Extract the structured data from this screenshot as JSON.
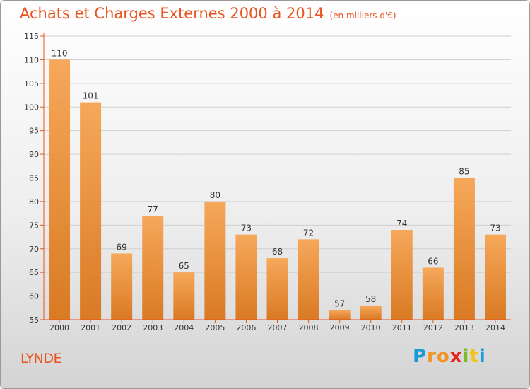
{
  "title": "Achats et Charges Externes 2000 à 2014",
  "subtitle": "(en milliers d'€)",
  "commune": "LYNDE",
  "logo": {
    "letters": [
      "P",
      "r",
      "o",
      "x",
      "i",
      "t",
      "i"
    ],
    "colors": [
      "#1a9ad6",
      "#f29222",
      "#f29222",
      "#e52421",
      "#7fbb27",
      "#f0c419",
      "#1a9ad6"
    ]
  },
  "colors": {
    "accent": "#e8541f",
    "bar_light": "#f6a85a",
    "bar_dark": "#d97a24",
    "axis": "#e8541f"
  },
  "chart_data": {
    "type": "bar",
    "categories": [
      "2000",
      "2001",
      "2002",
      "2003",
      "2004",
      "2005",
      "2006",
      "2007",
      "2008",
      "2009",
      "2010",
      "2011",
      "2012",
      "2013",
      "2014"
    ],
    "values": [
      110,
      101,
      69,
      77,
      65,
      80,
      73,
      68,
      72,
      57,
      58,
      74,
      66,
      85,
      73
    ],
    "ylim": [
      55,
      115
    ],
    "yticks": [
      55,
      60,
      65,
      70,
      75,
      80,
      85,
      90,
      95,
      100,
      105,
      110,
      115
    ],
    "grid": true,
    "title": "Achats et Charges Externes 2000 à 2014",
    "xlabel": "",
    "ylabel": ""
  }
}
